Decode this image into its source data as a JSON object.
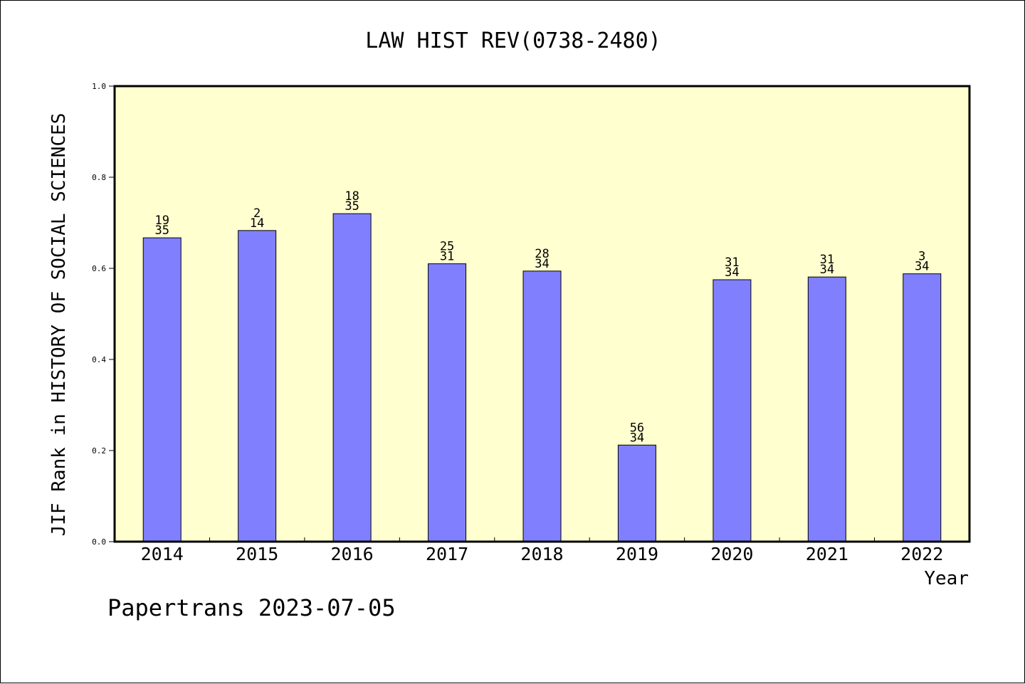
{
  "chart_data": {
    "type": "bar",
    "title": "LAW HIST REV(0738-2480)",
    "xlabel": "Year",
    "ylabel": "JIF Rank in HISTORY OF SOCIAL SCIENCES",
    "ylim": [
      0.0,
      1.0
    ],
    "yticks": [
      "0.0",
      "0.2",
      "0.4",
      "0.6",
      "0.8",
      "1.0"
    ],
    "categories": [
      "2014",
      "2015",
      "2016",
      "2017",
      "2018",
      "2019",
      "2020",
      "2021",
      "2022"
    ],
    "values": [
      0.667,
      0.683,
      0.72,
      0.61,
      0.594,
      0.212,
      0.575,
      0.581,
      0.588
    ],
    "bar_labels": [
      [
        "19",
        "35"
      ],
      [
        "2",
        "14"
      ],
      [
        "18",
        "35"
      ],
      [
        "25",
        "31"
      ],
      [
        "28",
        "34"
      ],
      [
        "56",
        "34"
      ],
      [
        "31",
        "34"
      ],
      [
        "31",
        "34"
      ],
      [
        "3",
        "34"
      ]
    ],
    "bar_color": "#8080ff",
    "plot_background": "#ffffd0",
    "grid": false
  },
  "footer": "Papertrans 2023-07-05"
}
